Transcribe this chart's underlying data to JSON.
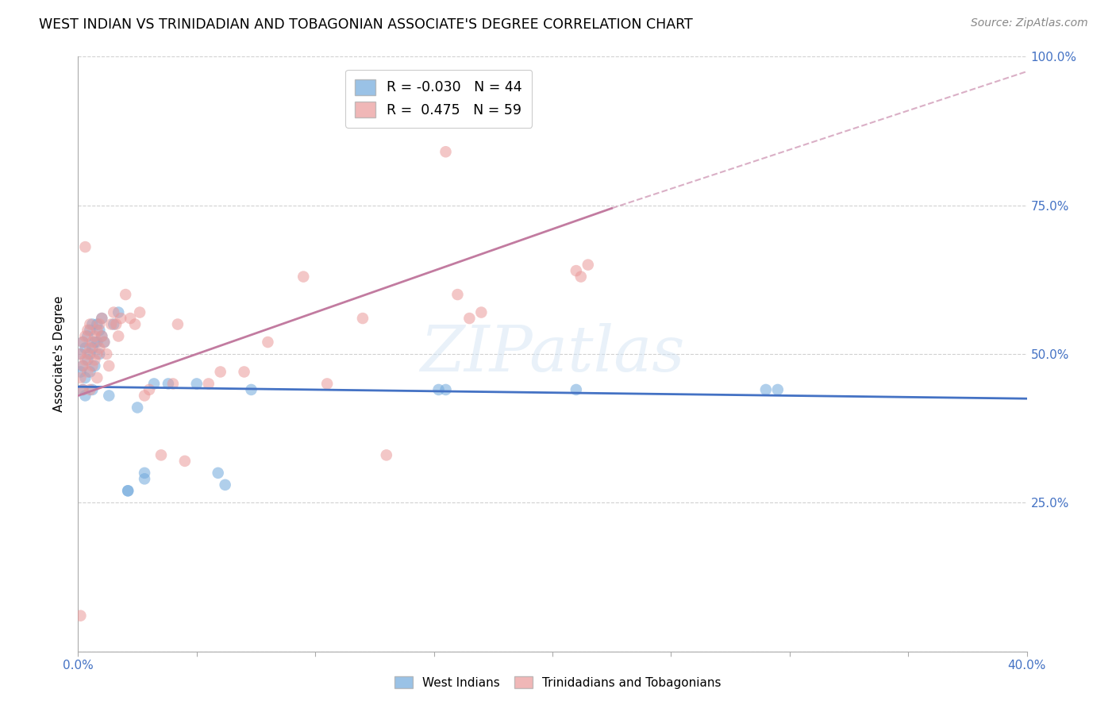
{
  "title": "WEST INDIAN VS TRINIDADIAN AND TOBAGONIAN ASSOCIATE'S DEGREE CORRELATION CHART",
  "source": "Source: ZipAtlas.com",
  "ylabel": "Associate's Degree",
  "xlim": [
    0.0,
    0.4
  ],
  "ylim": [
    0.0,
    1.0
  ],
  "xtick_pos": [
    0.0,
    0.05,
    0.1,
    0.15,
    0.2,
    0.25,
    0.3,
    0.35,
    0.4
  ],
  "xticklabels": [
    "0.0%",
    "",
    "",
    "",
    "",
    "",
    "",
    "",
    "40.0%"
  ],
  "ytick_pos": [
    0.0,
    0.25,
    0.5,
    0.75,
    1.0
  ],
  "ytick_labels": [
    "",
    "25.0%",
    "50.0%",
    "75.0%",
    "100.0%"
  ],
  "blue_R": "-0.030",
  "blue_N": "44",
  "pink_R": "0.475",
  "pink_N": "59",
  "blue_color": "#6fa8dc",
  "pink_color": "#ea9999",
  "blue_line_color": "#4472c4",
  "pink_line_color": "#c27ba0",
  "legend_label_blue": "West Indians",
  "legend_label_pink": "Trinidadians and Tobagonians",
  "axis_color": "#4472c4",
  "watermark": "ZIPatlas",
  "blue_line": {
    "x0": 0.0,
    "y0": 0.445,
    "x1": 0.4,
    "y1": 0.425
  },
  "pink_line_solid": {
    "x0": 0.0,
    "y0": 0.43,
    "x1": 0.225,
    "y1": 0.745
  },
  "pink_line_dash": {
    "x0": 0.225,
    "y0": 0.745,
    "x1": 0.4,
    "y1": 0.975
  },
  "blue_x": [
    0.001,
    0.001,
    0.002,
    0.002,
    0.002,
    0.003,
    0.003,
    0.003,
    0.004,
    0.004,
    0.005,
    0.005,
    0.005,
    0.006,
    0.006,
    0.006,
    0.007,
    0.007,
    0.008,
    0.008,
    0.009,
    0.009,
    0.01,
    0.01,
    0.011,
    0.013,
    0.015,
    0.017,
    0.021,
    0.021,
    0.025,
    0.028,
    0.028,
    0.032,
    0.038,
    0.05,
    0.059,
    0.062,
    0.073,
    0.152,
    0.155,
    0.21,
    0.29,
    0.295
  ],
  "blue_y": [
    0.5,
    0.47,
    0.52,
    0.48,
    0.44,
    0.51,
    0.46,
    0.43,
    0.53,
    0.49,
    0.54,
    0.5,
    0.47,
    0.55,
    0.51,
    0.44,
    0.52,
    0.48,
    0.55,
    0.52,
    0.54,
    0.5,
    0.56,
    0.53,
    0.52,
    0.43,
    0.55,
    0.57,
    0.27,
    0.27,
    0.41,
    0.3,
    0.29,
    0.45,
    0.45,
    0.45,
    0.3,
    0.28,
    0.44,
    0.44,
    0.44,
    0.44,
    0.44,
    0.44
  ],
  "pink_x": [
    0.001,
    0.001,
    0.001,
    0.002,
    0.002,
    0.002,
    0.003,
    0.003,
    0.003,
    0.004,
    0.004,
    0.004,
    0.005,
    0.005,
    0.005,
    0.006,
    0.006,
    0.007,
    0.007,
    0.008,
    0.008,
    0.008,
    0.009,
    0.009,
    0.01,
    0.01,
    0.011,
    0.012,
    0.013,
    0.014,
    0.015,
    0.016,
    0.017,
    0.018,
    0.02,
    0.022,
    0.024,
    0.026,
    0.028,
    0.03,
    0.035,
    0.04,
    0.042,
    0.045,
    0.055,
    0.06,
    0.07,
    0.08,
    0.095,
    0.105,
    0.12,
    0.13,
    0.155,
    0.16,
    0.165,
    0.17,
    0.21,
    0.212,
    0.215
  ],
  "pink_y": [
    0.06,
    0.5,
    0.46,
    0.52,
    0.48,
    0.44,
    0.53,
    0.49,
    0.68,
    0.54,
    0.5,
    0.47,
    0.55,
    0.51,
    0.44,
    0.52,
    0.48,
    0.53,
    0.49,
    0.54,
    0.5,
    0.46,
    0.55,
    0.51,
    0.56,
    0.53,
    0.52,
    0.5,
    0.48,
    0.55,
    0.57,
    0.55,
    0.53,
    0.56,
    0.6,
    0.56,
    0.55,
    0.57,
    0.43,
    0.44,
    0.33,
    0.45,
    0.55,
    0.32,
    0.45,
    0.47,
    0.47,
    0.52,
    0.63,
    0.45,
    0.56,
    0.33,
    0.84,
    0.6,
    0.56,
    0.57,
    0.64,
    0.63,
    0.65
  ]
}
